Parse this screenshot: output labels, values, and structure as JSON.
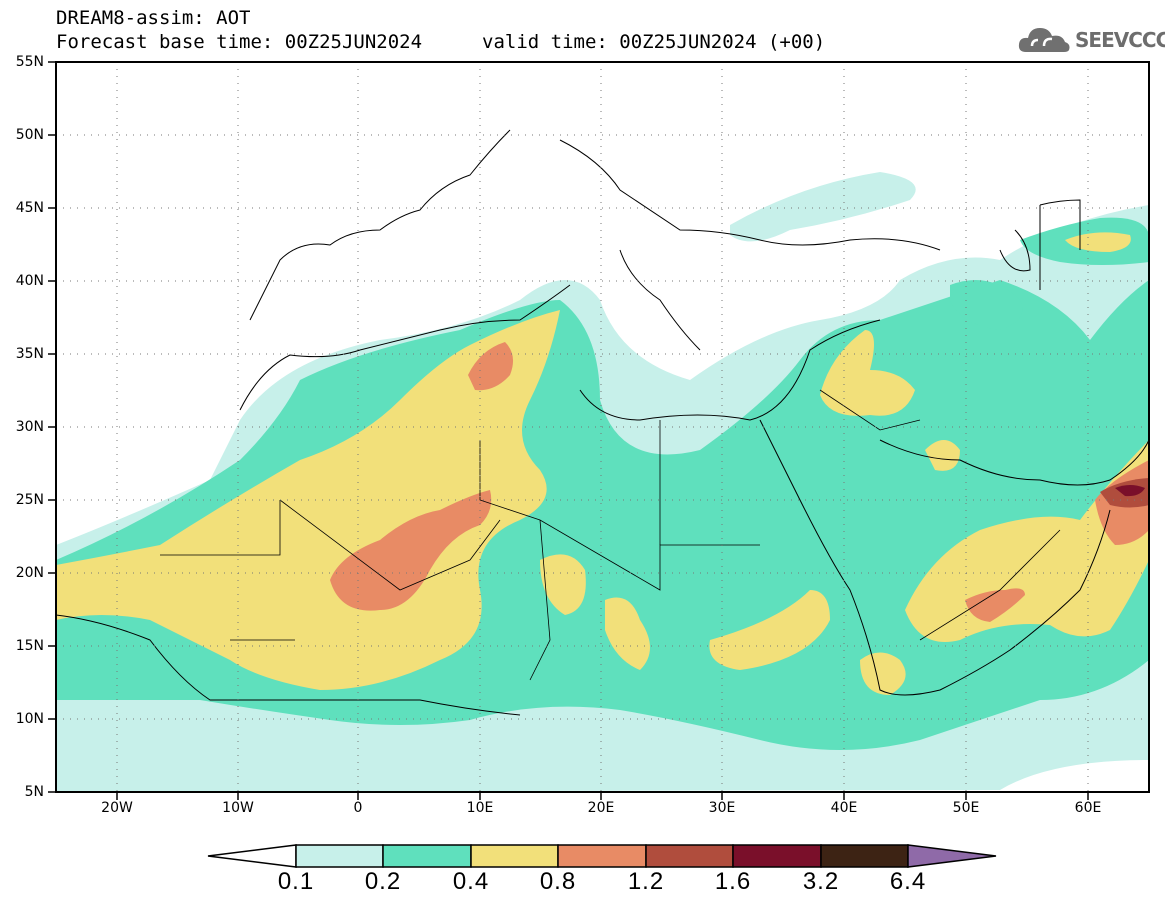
{
  "title": {
    "line1": "DREAM8-assim: AOT",
    "line2": "Forecast base time: 00Z25JUN2024",
    "valid": "valid time: 00Z25JUN2024 (+00)"
  },
  "logo": {
    "icon": "cloud-icon",
    "text": "SEEVCCC"
  },
  "map": {
    "lon_range": [
      -25,
      65
    ],
    "lat_range": [
      5,
      55
    ],
    "lat_labels": [
      "55N",
      "50N",
      "45N",
      "40N",
      "35N",
      "30N",
      "25N",
      "20N",
      "15N",
      "10N",
      "5N"
    ],
    "lon_labels": [
      "20W",
      "10W",
      "0",
      "10E",
      "20E",
      "30E",
      "40E",
      "50E",
      "60E"
    ]
  },
  "colorbar": {
    "labels": [
      "0.1",
      "0.2",
      "0.4",
      "0.8",
      "1.2",
      "1.6",
      "3.2",
      "6.4"
    ],
    "colors": [
      "#ffffff",
      "#c7f0ea",
      "#5fe0bd",
      "#f2e07a",
      "#e88b65",
      "#b04d3d",
      "#7a0f2a",
      "#3d2314",
      "#8f6aa8"
    ]
  },
  "field_colors": {
    "level_0_1": "#c7f0ea",
    "level_0_2": "#5fe0bd",
    "level_0_4": "#f2e07a",
    "level_0_8": "#e88b65",
    "level_1_2": "#b04d3d",
    "level_1_6": "#7a0f2a"
  }
}
